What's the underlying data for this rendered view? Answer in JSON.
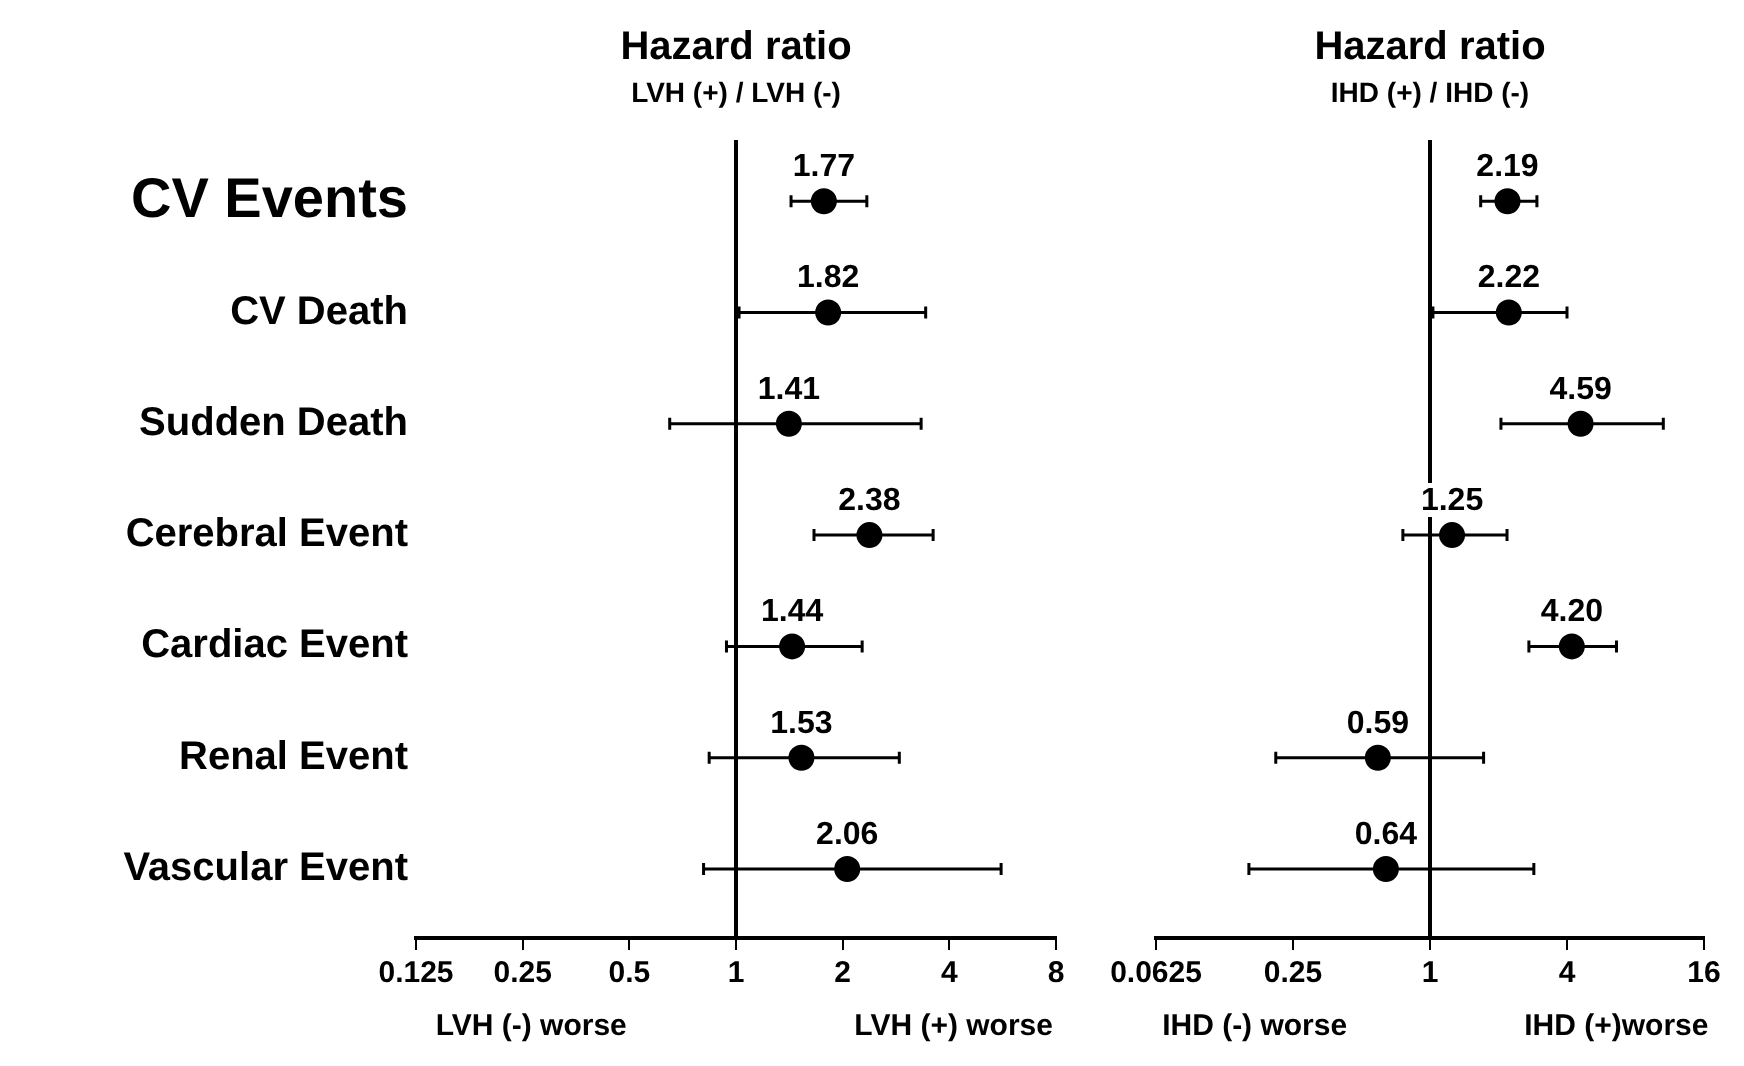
{
  "chart_data": [
    {
      "type": "scatter",
      "title": "Hazard ratio",
      "subtitle": "LVH (+) / LVH (-)",
      "orientation": "horizontal",
      "categories": [
        "CV Events",
        "CV Death",
        "Sudden Death",
        "Cerebral Event",
        "Cardiac Event",
        "Renal Event",
        "Vascular Event"
      ],
      "values": [
        1.77,
        1.82,
        1.41,
        2.38,
        1.44,
        1.53,
        2.06
      ],
      "errors": [
        [
          1.43,
          2.34
        ],
        [
          1.02,
          3.43
        ],
        [
          0.65,
          3.33
        ],
        [
          1.66,
          3.6
        ],
        [
          0.94,
          2.27
        ],
        [
          0.84,
          2.89
        ],
        [
          0.81,
          5.6
        ]
      ],
      "value_labels": [
        "1.77",
        "1.82",
        "1.41",
        "2.38",
        "1.44",
        "1.53",
        "2.06"
      ],
      "color": "#000000",
      "marker": "circle",
      "log": "x",
      "xlim": [
        0.125,
        8
      ],
      "xticks": [
        0.125,
        0.25,
        0.5,
        1,
        2,
        4,
        8
      ],
      "grid": false,
      "legend": false,
      "ref_lines": [
        {
          "axis": "x",
          "value": 1
        }
      ],
      "annotations": [
        "LVH (-) worse",
        "LVH (+) worse"
      ]
    },
    {
      "type": "scatter",
      "title": "Hazard ratio",
      "subtitle": "IHD (+) / IHD (-)",
      "orientation": "horizontal",
      "categories": [
        null,
        null,
        null,
        null,
        null,
        null,
        null
      ],
      "values": [
        2.19,
        2.22,
        4.59,
        1.25,
        4.2,
        0.59,
        0.64
      ],
      "errors": [
        [
          1.67,
          2.95
        ],
        [
          1.03,
          4.0
        ],
        [
          2.05,
          10.6
        ],
        [
          0.76,
          2.18
        ],
        [
          2.72,
          6.6
        ],
        [
          0.21,
          1.72
        ],
        [
          0.16,
          2.86
        ]
      ],
      "value_labels": [
        "2.19",
        "2.22",
        "4.59",
        "1.25",
        "4.20",
        "0.59",
        "0.64"
      ],
      "color": "#000000",
      "marker": "circle",
      "log": "x",
      "xlim": [
        0.0625,
        16
      ],
      "xticks": [
        0.0625,
        0.25,
        1,
        4,
        16
      ],
      "grid": false,
      "legend": false,
      "tick_labels": "x",
      "ref_lines": [
        {
          "axis": "x",
          "value": 1
        }
      ],
      "annotations": [
        "IHD (-) worse",
        "IHD (+)worse"
      ]
    }
  ]
}
